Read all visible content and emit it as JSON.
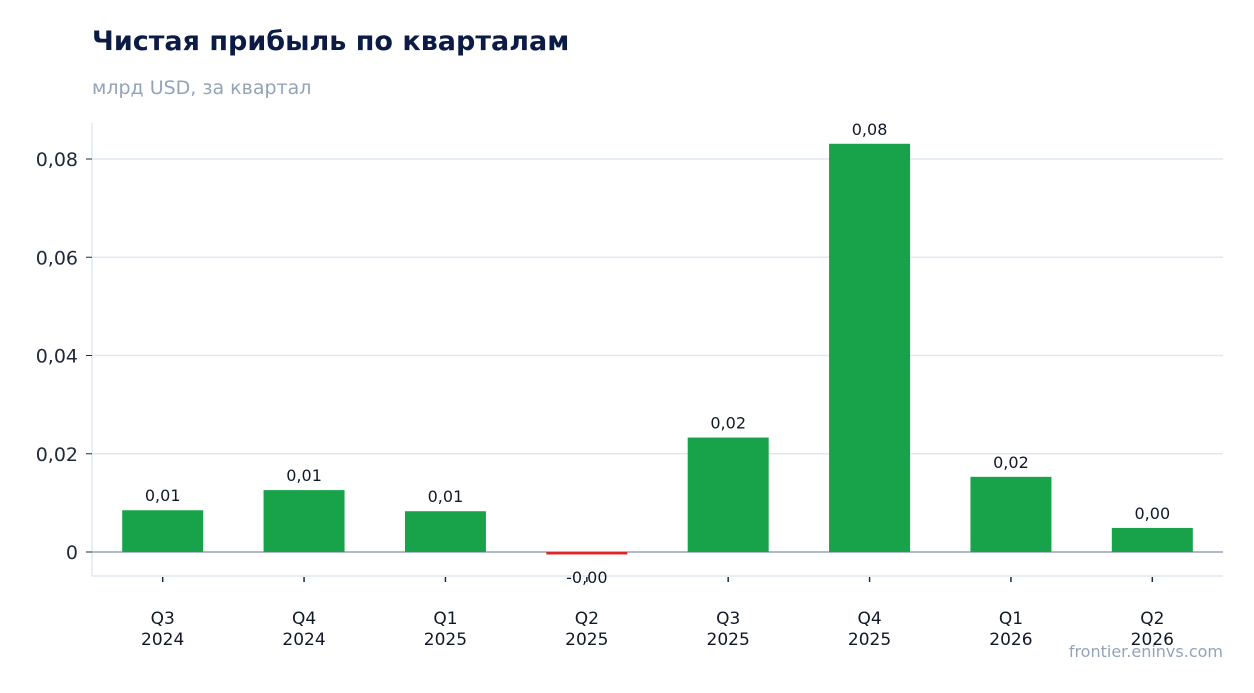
{
  "chart_data": {
    "type": "bar",
    "title": "Чистая прибыль по кварталам",
    "subtitle": "млрд USD, за квартал",
    "xlabel": "",
    "ylabel": "",
    "categories": [
      [
        "Q3",
        "2024"
      ],
      [
        "Q4",
        "2024"
      ],
      [
        "Q1",
        "2025"
      ],
      [
        "Q2",
        "2025"
      ],
      [
        "Q3",
        "2025"
      ],
      [
        "Q4",
        "2025"
      ],
      [
        "Q1",
        "2026"
      ],
      [
        "Q2",
        "2026"
      ]
    ],
    "values": [
      0.0085,
      0.0126,
      0.0083,
      -0.0005,
      0.0233,
      0.0831,
      0.0153,
      0.0049
    ],
    "data_labels": [
      "0,01",
      "0,01",
      "0,01",
      "-0,00",
      "0,02",
      "0,08",
      "0,02",
      "0,00"
    ],
    "ylim": [
      -0.005,
      0.0875
    ],
    "yticks": [
      0,
      0.02,
      0.04,
      0.06,
      0.08
    ],
    "ytick_labels": [
      "0",
      "0,02",
      "0,04",
      "0,06",
      "0,08"
    ],
    "grid": true,
    "colors": {
      "positive": "#18a34a",
      "negative": "#dc2626",
      "grid": "#e2e8f0",
      "zero_line": "#94a3b8",
      "title": "#0b1b45",
      "subtitle": "#94a3b8"
    }
  },
  "watermark": "frontier.eninvs.com"
}
